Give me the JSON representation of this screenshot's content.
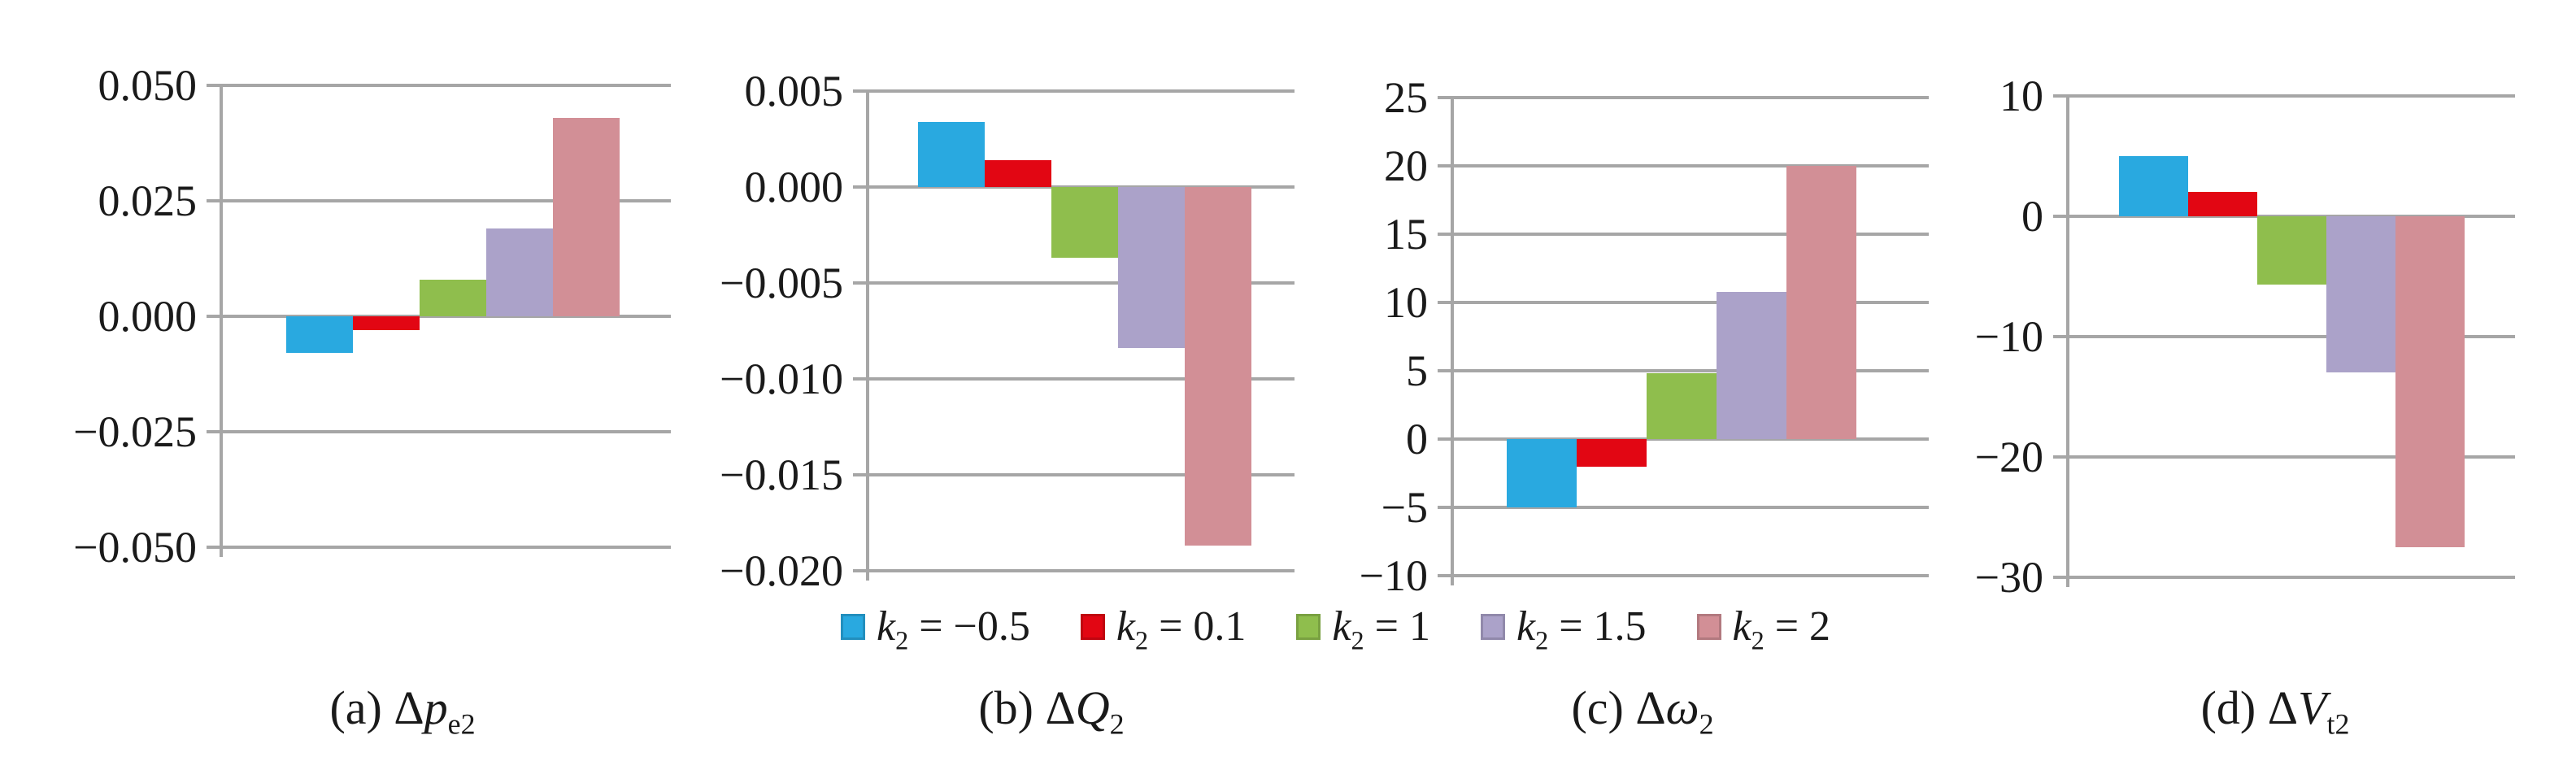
{
  "figure": {
    "background": "#FFFFFF",
    "grid_color": "#A6A6A6",
    "text_color": "#1A1A1A"
  },
  "series": [
    {
      "label": "k2 = −0.5",
      "label_parts": {
        "var": "k",
        "sub": "2",
        "rest": " = −0.5"
      },
      "color": "#29A9E0"
    },
    {
      "label": "k2 = 0.1",
      "label_parts": {
        "var": "k",
        "sub": "2",
        "rest": " = 0.1"
      },
      "color": "#E20613"
    },
    {
      "label": "k2 = 1",
      "label_parts": {
        "var": "k",
        "sub": "2",
        "rest": " = 1"
      },
      "color": "#8FBE4D"
    },
    {
      "label": "k2 = 1.5",
      "label_parts": {
        "var": "k",
        "sub": "2",
        "rest": " = 1.5"
      },
      "color": "#ABA2C9"
    },
    {
      "label": "k2 = 2",
      "label_parts": {
        "var": "k",
        "sub": "2",
        "rest": " = 2"
      },
      "color": "#D28F96"
    }
  ],
  "legend": {
    "position": "bottom-center-shared"
  },
  "captions": [
    {
      "prefix": "(a) ",
      "delta": "Δ",
      "variable": "p",
      "subscript": "e2",
      "text": "(a) Δp_e2"
    },
    {
      "prefix": "(b) ",
      "delta": "Δ",
      "variable": "Q",
      "subscript": "2",
      "text": "(b) ΔQ_2"
    },
    {
      "prefix": "(c) ",
      "delta": "Δ",
      "variable": "ω",
      "subscript": "2",
      "text": "(c) Δω_2"
    },
    {
      "prefix": "(d) ",
      "delta": "Δ",
      "variable": "V",
      "subscript": "t2",
      "text": "(d) ΔV_t2"
    }
  ],
  "chart_data": [
    {
      "type": "bar",
      "id": "a",
      "title": "(a) Δp_e2",
      "categories": [
        "k2 = −0.5",
        "k2 = 0.1",
        "k2 = 1",
        "k2 = 1.5",
        "k2 = 2"
      ],
      "values": [
        -0.008,
        -0.003,
        0.008,
        0.019,
        0.043
      ],
      "ylim": [
        -0.05,
        0.05
      ],
      "yticks": [
        0.05,
        0.025,
        0.0,
        -0.025,
        -0.05
      ],
      "ytick_labels": [
        "0.050",
        "0.025",
        "0.000",
        "−0.025",
        "−0.050"
      ],
      "xlabel": "",
      "ylabel": "",
      "grid": true
    },
    {
      "type": "bar",
      "id": "b",
      "title": "(b) ΔQ_2",
      "categories": [
        "k2 = −0.5",
        "k2 = 0.1",
        "k2 = 1",
        "k2 = 1.5",
        "k2 = 2"
      ],
      "values": [
        0.0034,
        0.0014,
        -0.0037,
        -0.0084,
        -0.0187
      ],
      "ylim": [
        -0.02,
        0.005
      ],
      "yticks": [
        0.005,
        0.0,
        -0.005,
        -0.01,
        -0.015,
        -0.02
      ],
      "ytick_labels": [
        "0.005",
        "0.000",
        "−0.005",
        "−0.010",
        "−0.015",
        "−0.020"
      ],
      "xlabel": "",
      "ylabel": "",
      "grid": true
    },
    {
      "type": "bar",
      "id": "c",
      "title": "(c) Δω_2",
      "categories": [
        "k2 = −0.5",
        "k2 = 0.1",
        "k2 = 1",
        "k2 = 1.5",
        "k2 = 2"
      ],
      "values": [
        -5,
        -2,
        4.8,
        10.8,
        20
      ],
      "ylim": [
        -10,
        25
      ],
      "yticks": [
        25,
        20,
        15,
        10,
        5,
        0,
        -5,
        -10
      ],
      "ytick_labels": [
        "25",
        "20",
        "15",
        "10",
        "5",
        "0",
        "−5",
        "−10"
      ],
      "xlabel": "",
      "ylabel": "",
      "grid": true
    },
    {
      "type": "bar",
      "id": "d",
      "title": "(d) ΔV_t2",
      "categories": [
        "k2 = −0.5",
        "k2 = 0.1",
        "k2 = 1",
        "k2 = 1.5",
        "k2 = 2"
      ],
      "values": [
        5,
        2,
        -5.7,
        -13,
        -27.5
      ],
      "ylim": [
        -30,
        10
      ],
      "yticks": [
        10,
        0,
        -10,
        -20,
        -30
      ],
      "ytick_labels": [
        "10",
        "0",
        "−10",
        "−20",
        "−30"
      ],
      "xlabel": "",
      "ylabel": "",
      "grid": true
    }
  ]
}
